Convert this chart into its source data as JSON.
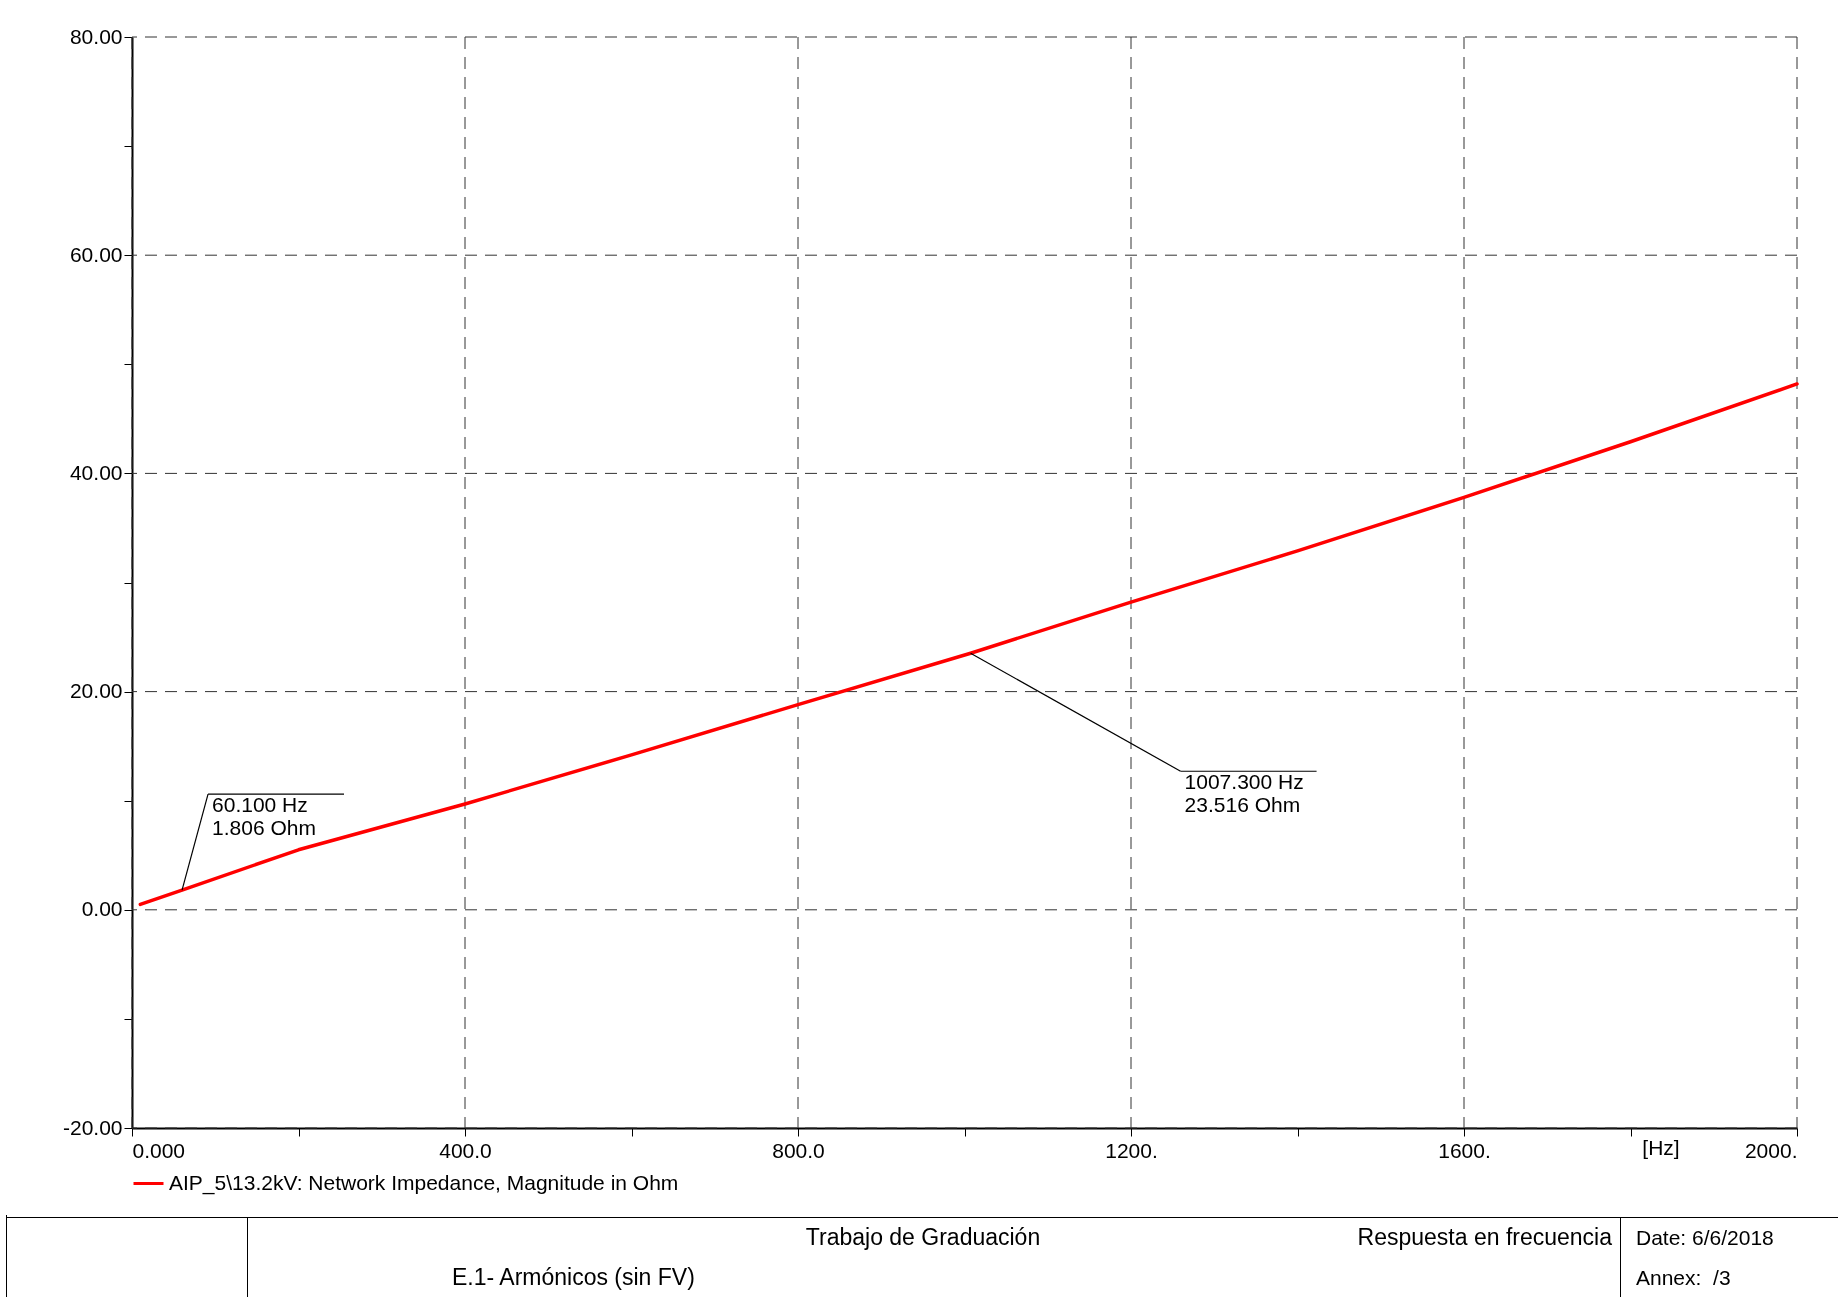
{
  "chart_data": {
    "type": "line",
    "xlabel": "[Hz]",
    "x": [
      10,
      60.1,
      200,
      400,
      600,
      800,
      1007.3,
      1200,
      1400,
      1600,
      1800,
      2000
    ],
    "series": [
      {
        "name": "AIP_5\\13.2kV: Network Impedance, Magnitude in Ohm",
        "color": "#ff0000",
        "values": [
          0.5,
          1.806,
          5.5,
          9.7,
          14.2,
          18.8,
          23.516,
          28.2,
          32.9,
          37.8,
          42.9,
          48.2
        ]
      }
    ],
    "xlim": [
      0,
      2000
    ],
    "xticks": [
      {
        "value": 0,
        "label": "0.000"
      },
      {
        "value": 200,
        "label": null
      },
      {
        "value": 400,
        "label": "400.0"
      },
      {
        "value": 600,
        "label": null
      },
      {
        "value": 800,
        "label": "800.0"
      },
      {
        "value": 1000,
        "label": null
      },
      {
        "value": 1200,
        "label": "1200."
      },
      {
        "value": 1400,
        "label": null
      },
      {
        "value": 1600,
        "label": "1600."
      },
      {
        "value": 1800,
        "label": null
      },
      {
        "value": 2000,
        "label": "2000."
      }
    ],
    "ylim": [
      -20,
      80
    ],
    "yticks": [
      {
        "value": -20,
        "label": "-20.00"
      },
      {
        "value": -10,
        "label": null
      },
      {
        "value": 0,
        "label": "0.00"
      },
      {
        "value": 10,
        "label": null
      },
      {
        "value": 20,
        "label": "20.00"
      },
      {
        "value": 30,
        "label": null
      },
      {
        "value": 40,
        "label": "40.00"
      },
      {
        "value": 50,
        "label": null
      },
      {
        "value": 60,
        "label": "60.00"
      },
      {
        "value": 70,
        "label": null
      },
      {
        "value": 80,
        "label": "80.00"
      }
    ],
    "grid": true,
    "legend": "bottom",
    "marker": "none",
    "line_style": "solid",
    "annotations": [
      {
        "text": "60.100 Hz\n1.806 Ohm",
        "x": 60.1,
        "y": 1.806
      },
      {
        "text": "1007.300 Hz\n23.516 Ohm",
        "x": 1007.3,
        "y": 23.516
      },
      "Trabajo de Graduación",
      "Respuesta en frecuencia",
      "E.1- Armónicos (sin FV)",
      "Date: 6/6/2018",
      "Annex:  /3"
    ]
  }
}
